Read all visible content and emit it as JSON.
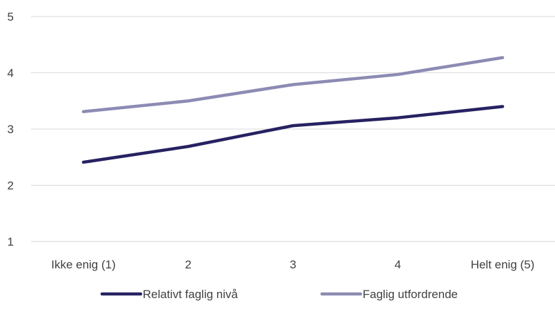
{
  "chart_data": {
    "type": "line",
    "title": "",
    "xlabel": "",
    "ylabel": "",
    "categories": [
      "Ikke enig (1)",
      "2",
      "3",
      "4",
      "Helt enig (5)"
    ],
    "ylim": [
      1,
      5
    ],
    "yticks": [
      1,
      2,
      3,
      4,
      5
    ],
    "grid": true,
    "legend_position": "bottom",
    "series": [
      {
        "name": "Relativt faglig nivå",
        "color": "#262262",
        "values": [
          2.41,
          2.69,
          3.06,
          3.2,
          3.4
        ]
      },
      {
        "name": "Faglig utfordrende",
        "color": "#8c8bb3",
        "values": [
          3.31,
          3.5,
          3.79,
          3.97,
          4.27
        ]
      }
    ]
  }
}
